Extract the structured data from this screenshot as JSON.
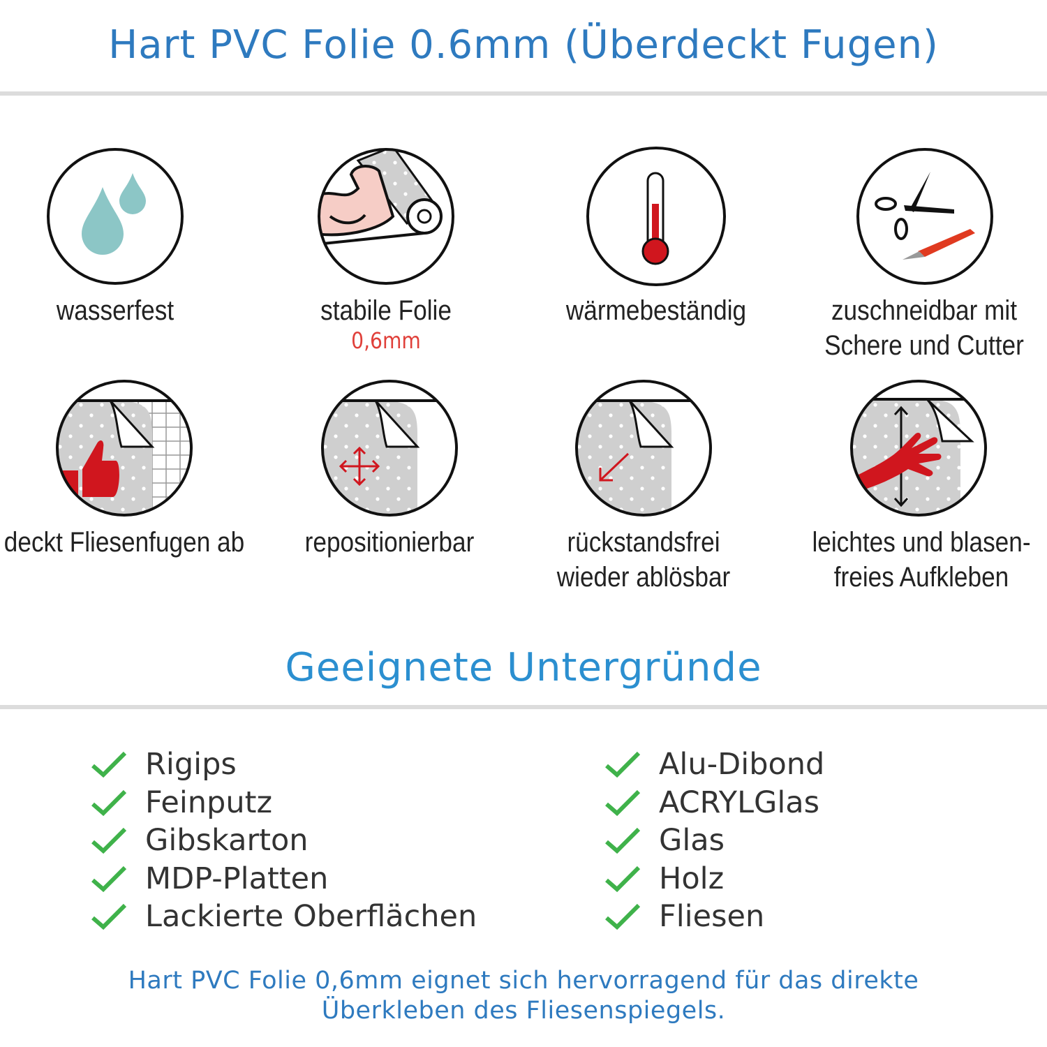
{
  "header": {
    "title": "Hart PVC Folie 0.6mm (Überdeckt Fugen)"
  },
  "features": [
    {
      "icon": "water-drops-icon",
      "lines": [
        "wasserfest"
      ]
    },
    {
      "icon": "flexed-arm-roll-icon",
      "lines": [
        "stabile Folie"
      ],
      "highlight": "0,6mm"
    },
    {
      "icon": "thermometer-icon",
      "lines": [
        "wärmebeständig"
      ]
    },
    {
      "icon": "scissors-cutter-icon",
      "lines": [
        "zuschneidbar mit",
        "Schere und Cutter"
      ]
    },
    {
      "icon": "thumbs-up-tile-icon",
      "lines": [
        "deckt Fliesenfugen ab"
      ]
    },
    {
      "icon": "move-arrows-icon",
      "lines": [
        "repositionierbar"
      ]
    },
    {
      "icon": "peel-arrow-icon",
      "lines": [
        "rückstandsfrei",
        "wieder ablösbar"
      ]
    },
    {
      "icon": "hand-smooth-icon",
      "lines": [
        "leichtes und blasen-",
        "freies Aufkleben"
      ]
    }
  ],
  "section": {
    "title": "Geeignete Untergründe"
  },
  "surfaces_left": [
    "Rigips",
    "Feinputz",
    "Gibskarton",
    "MDP-Platten",
    "Lackierte Oberflächen"
  ],
  "surfaces_right": [
    "Alu-Dibond",
    "ACRYLGlas",
    "Glas",
    "Holz",
    "Fliesen"
  ],
  "footer": {
    "lines": [
      "Hart PVC Folie 0,6mm eignet sich hervorragend für das direkte",
      "Überkleben des Fliesenspiegels."
    ]
  },
  "colors": {
    "title_blue": "#2e7abf",
    "section_blue": "#2b8fd0",
    "check_green": "#3fb24a",
    "accent_red": "#d0161e",
    "drop_teal": "#8cc6c6"
  }
}
